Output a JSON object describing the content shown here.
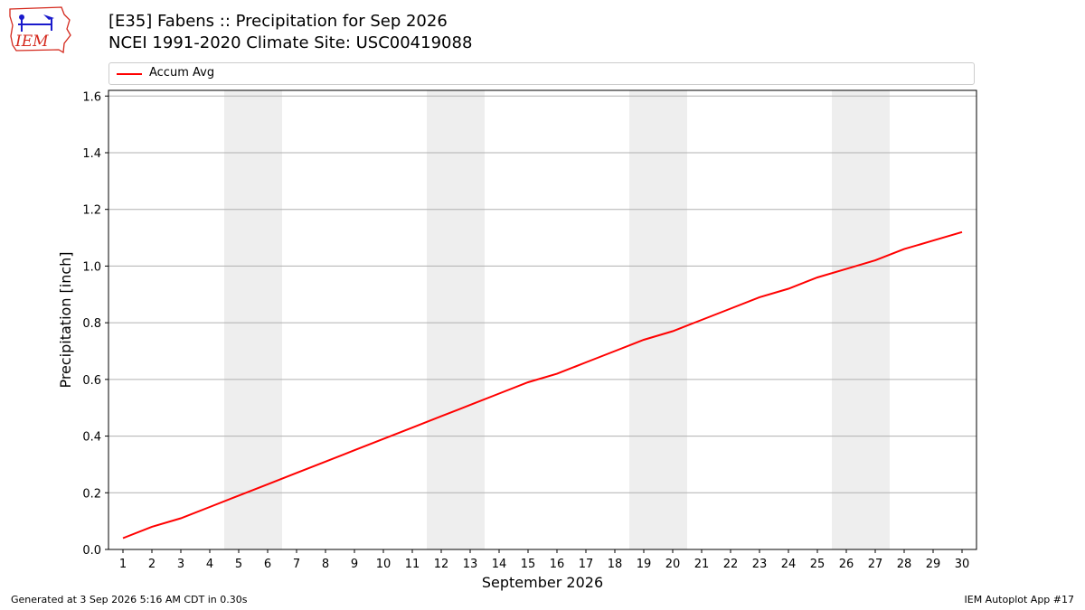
{
  "header": {
    "title_line1": "[E35] Fabens :: Precipitation for Sep 2026",
    "title_line2": "NCEI 1991-2020 Climate Site: USC00419088",
    "logo_text": "IEM"
  },
  "footer": {
    "left": "Generated at 3 Sep 2026 5:16 AM CDT in 0.30s",
    "right": "IEM Autoplot App #17"
  },
  "colors": {
    "series_line": "#ff0000",
    "weekend_shade": "#eeeeee",
    "grid": "#b0b0b0",
    "logo_blue": "#1a1acc",
    "logo_red": "#d4281c"
  },
  "chart_data": {
    "type": "line",
    "xlabel": "September 2026",
    "ylabel": "Precipitation [inch]",
    "xlim": [
      0.5,
      30.5
    ],
    "ylim": [
      0,
      1.62
    ],
    "grid": true,
    "legend_position": "top",
    "x": [
      1,
      2,
      3,
      4,
      5,
      6,
      7,
      8,
      9,
      10,
      11,
      12,
      13,
      14,
      15,
      16,
      17,
      18,
      19,
      20,
      21,
      22,
      23,
      24,
      25,
      26,
      27,
      28,
      29,
      30
    ],
    "x_tick_labels": [
      "1",
      "2",
      "3",
      "4",
      "5",
      "6",
      "7",
      "8",
      "9",
      "10",
      "11",
      "12",
      "13",
      "14",
      "15",
      "16",
      "17",
      "18",
      "19",
      "20",
      "21",
      "22",
      "23",
      "24",
      "25",
      "26",
      "27",
      "28",
      "29",
      "30"
    ],
    "y_ticks": [
      0.0,
      0.2,
      0.4,
      0.6,
      0.8,
      1.0,
      1.2,
      1.4,
      1.6
    ],
    "y_tick_labels": [
      "0.0",
      "0.2",
      "0.4",
      "0.6",
      "0.8",
      "1.0",
      "1.2",
      "1.4",
      "1.6"
    ],
    "shaded_day_ranges": [
      [
        5,
        6
      ],
      [
        12,
        13
      ],
      [
        19,
        20
      ],
      [
        26,
        27
      ]
    ],
    "series": [
      {
        "name": "Accum Avg",
        "values": [
          0.04,
          0.08,
          0.11,
          0.15,
          0.19,
          0.23,
          0.27,
          0.31,
          0.35,
          0.39,
          0.43,
          0.47,
          0.51,
          0.55,
          0.59,
          0.62,
          0.66,
          0.7,
          0.74,
          0.77,
          0.81,
          0.85,
          0.89,
          0.92,
          0.96,
          0.99,
          1.02,
          1.06,
          1.09,
          1.12
        ]
      }
    ]
  }
}
